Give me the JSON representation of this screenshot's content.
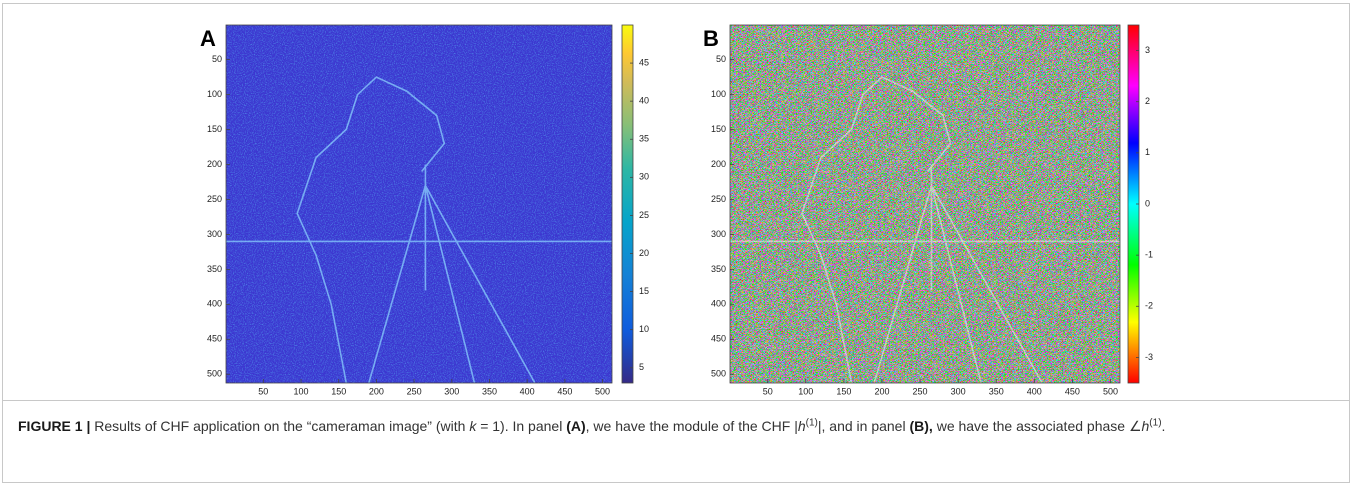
{
  "panels": [
    {
      "label": "A",
      "xlim": [
        0.5,
        512.5
      ],
      "ylim": [
        0.5,
        512.5
      ],
      "xticks": [
        50,
        100,
        150,
        200,
        250,
        300,
        350,
        400,
        450,
        500
      ],
      "yticks": [
        50,
        100,
        150,
        200,
        250,
        300,
        350,
        400,
        450,
        500
      ],
      "colormap": "parula",
      "clim": [
        3,
        50
      ],
      "cticks": [
        5,
        10,
        15,
        20,
        25,
        30,
        35,
        40,
        45
      ]
    },
    {
      "label": "B",
      "xlim": [
        0.5,
        512.5
      ],
      "ylim": [
        0.5,
        512.5
      ],
      "xticks": [
        50,
        100,
        150,
        200,
        250,
        300,
        350,
        400,
        450,
        500
      ],
      "yticks": [
        50,
        100,
        150,
        200,
        250,
        300,
        350,
        400,
        450,
        500
      ],
      "colormap": "hsv",
      "clim": [
        -3.5,
        3.5
      ],
      "cticks": [
        -3,
        -2,
        -1,
        0,
        1,
        2,
        3
      ]
    }
  ],
  "caption": [
    {
      "text": "FIGURE 1 |",
      "style": "b"
    },
    {
      "text": " Results of CHF application on the “cameraman image” (with ",
      "style": "n"
    },
    {
      "text": "k",
      "style": "i"
    },
    {
      "text": " = 1). In panel ",
      "style": "n"
    },
    {
      "text": "(A)",
      "style": "b"
    },
    {
      "text": ", we have the module of the CHF |",
      "style": "n"
    },
    {
      "text": "h",
      "style": "i"
    },
    {
      "text": "(1)",
      "style": "sup"
    },
    {
      "text": "|, and in panel ",
      "style": "n"
    },
    {
      "text": "(B),",
      "style": "b"
    },
    {
      "text": " we have the associated phase ∠",
      "style": "n"
    },
    {
      "text": "h",
      "style": "i"
    },
    {
      "text": "(1)",
      "style": "sup"
    },
    {
      "text": ".",
      "style": "n"
    }
  ]
}
